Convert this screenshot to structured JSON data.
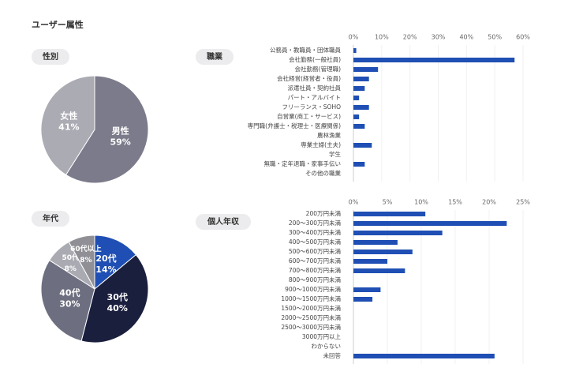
{
  "title": "ユーザー属性",
  "chart_data": [
    {
      "type": "pie",
      "title": "性別",
      "categories": [
        "男性",
        "女性"
      ],
      "values": [
        59,
        41
      ],
      "value_labels": [
        "59%",
        "41%"
      ],
      "colors": [
        "#7b7b8b",
        "#ababb4"
      ]
    },
    {
      "type": "hbar",
      "title": "職業",
      "categories": [
        "公務員・教職員・団体職員",
        "会社勤務(一般社員)",
        "会社勤務(管理職)",
        "会社経営(経営者・役員)",
        "派遣社員・契約社員",
        "パート・アルバイト",
        "フリーランス・SOHO",
        "自営業(商工・サービス)",
        "専門職(弁護士・税理士・医療関係)",
        "農林漁業",
        "専業主婦(主夫)",
        "学生",
        "無職・定年退職・家事手伝い",
        "その他の職業"
      ],
      "values": [
        1,
        57,
        8.7,
        5.5,
        4,
        2,
        5.5,
        2,
        4,
        0,
        6.5,
        0,
        4,
        0
      ],
      "color": "#1f4fb4",
      "xlim": [
        0,
        60
      ],
      "xticks": [
        {
          "value": 0,
          "label": "0%"
        },
        {
          "value": 10,
          "label": "10%"
        },
        {
          "value": 20,
          "label": "20%"
        },
        {
          "value": 30,
          "label": "30%"
        },
        {
          "value": 40,
          "label": "40%"
        },
        {
          "value": 50,
          "label": "50%"
        },
        {
          "value": 60,
          "label": "60%"
        }
      ],
      "grid": true
    },
    {
      "type": "pie",
      "title": "年代",
      "categories": [
        "20代",
        "30代",
        "40代",
        "50代",
        "60代以上"
      ],
      "values": [
        14,
        40,
        30,
        8,
        8
      ],
      "value_labels": [
        "14%",
        "40%",
        "30%",
        "8%",
        "8%"
      ],
      "colors": [
        "#1f4fb4",
        "#1b1f3e",
        "#6d6f80",
        "#aaaab3",
        "#8f8f95"
      ]
    },
    {
      "type": "hbar",
      "title": "個人年収",
      "categories": [
        "200万円未満",
        "200～300万円未満",
        "300～400万円未満",
        "400～500万円未満",
        "500～600万円未満",
        "600～700万円未満",
        "700～800万円未満",
        "800～900万円未満",
        "900～1000万円未満",
        "1000～1500万円未満",
        "1500～2000万円未満",
        "2000～2500万円未満",
        "2500～3000万円未満",
        "3000万円以上",
        "わからない",
        "未回答"
      ],
      "values": [
        10.6,
        22.6,
        13.1,
        6.5,
        8.7,
        5,
        7.6,
        0,
        4,
        2.8,
        0,
        0,
        0,
        0,
        0,
        20.8
      ],
      "color": "#1f4fb4",
      "xlim": [
        0,
        25
      ],
      "xticks": [
        {
          "value": 0,
          "label": "0%"
        },
        {
          "value": 5,
          "label": "5%"
        },
        {
          "value": 10,
          "label": "10%"
        },
        {
          "value": 15,
          "label": "15%"
        },
        {
          "value": 20,
          "label": "20%"
        },
        {
          "value": 25,
          "label": "25%"
        }
      ],
      "grid": true
    }
  ]
}
